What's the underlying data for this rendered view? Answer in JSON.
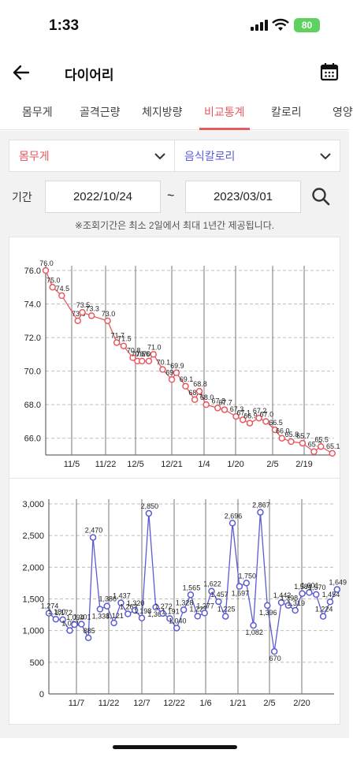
{
  "status_bar": {
    "time": "1:33",
    "battery": "80"
  },
  "header": {
    "title": "다이어리",
    "back_icon": "arrow-left-icon",
    "calendar_icon": "calendar-icon"
  },
  "tabs": [
    {
      "label": "몸무게",
      "active": false
    },
    {
      "label": "골격근량",
      "active": false
    },
    {
      "label": "체지방량",
      "active": false
    },
    {
      "label": "비교통계",
      "active": true
    },
    {
      "label": "칼로리",
      "active": false
    },
    {
      "label": "영양",
      "active": false
    }
  ],
  "selects": {
    "left": "몸무게",
    "right": "음식칼로리"
  },
  "period": {
    "label": "기간",
    "start": "2022/10/24",
    "separator": "~",
    "end": "2023/03/01"
  },
  "notice": "※조회기간은 최소 2일에서 최대 1년간 제공됩니다.",
  "colors": {
    "accent": "#e8585f",
    "weight_line": "#e8585f",
    "calorie_line": "#5b5bd6"
  },
  "chart_data": [
    {
      "type": "line",
      "series": [
        {
          "name": "몸무게",
          "values": [
            76.0,
            75.0,
            74.5,
            73.0,
            73.5,
            73.3,
            73.0,
            71.7,
            71.5,
            70.8,
            70.6,
            70.6,
            70.6,
            71.0,
            70.1,
            69.5,
            69.9,
            69.1,
            68.3,
            68.8,
            68.0,
            67.8,
            67.7,
            67.3,
            67.1,
            66.9,
            67.2,
            67.0,
            66.5,
            66.0,
            65.8,
            65.7,
            65.2,
            65.5,
            65.1
          ]
        }
      ],
      "x": [
        "2022-10-24",
        "2022-10-27",
        "2022-10-31",
        "2022-11-07",
        "2022-11-09",
        "2022-11-13",
        "2022-11-20",
        "2022-11-24",
        "2022-11-27",
        "2022-12-01",
        "2022-12-03",
        "2022-12-05",
        "2022-12-08",
        "2022-12-10",
        "2022-12-14",
        "2022-12-18",
        "2022-12-20",
        "2022-12-24",
        "2022-12-28",
        "2022-12-30",
        "2023-01-02",
        "2023-01-07",
        "2023-01-10",
        "2023-01-15",
        "2023-01-18",
        "2023-01-21",
        "2023-01-25",
        "2023-01-28",
        "2023-02-01",
        "2023-02-04",
        "2023-02-08",
        "2023-02-13",
        "2023-02-18",
        "2023-02-21",
        "2023-02-26"
      ],
      "labels": [
        "76.0",
        "75.0",
        "74.5",
        "73.0",
        "73.5",
        "73.3",
        "73.0",
        "71.7",
        "71.5",
        "70.8",
        "70.6",
        "70.6",
        "70.6",
        "71.0",
        "70.1",
        "69.5",
        "69.9",
        "69.1",
        "68.3",
        "68.8",
        "68.0",
        "67.8",
        "67.7",
        "67.3",
        "67.1",
        "66.9",
        "67.2",
        "67.0",
        "66.5",
        "66.0",
        "65.8",
        "65.7",
        "65.2",
        "65.5",
        "65.1"
      ],
      "xticks": [
        "11/5",
        "11/22",
        "12/5",
        "12/21",
        "1/4",
        "1/20",
        "2/5",
        "2/19"
      ],
      "yticks": [
        "76.0",
        "74.0",
        "72.0",
        "70.0",
        "68.0",
        "66.0"
      ],
      "ylim": [
        65.0,
        76.0
      ]
    },
    {
      "type": "line",
      "series": [
        {
          "name": "음식칼로리",
          "values": [
            1274,
            1180,
            1172,
            1001,
            1094,
            1101,
            885,
            2470,
            1338,
            1386,
            1121,
            1437,
            1263,
            1320,
            1198,
            2850,
            1369,
            1272,
            1191,
            1040,
            1328,
            1565,
            1227,
            1277,
            1622,
            1457,
            1225,
            2696,
            1697,
            1750,
            1082,
            2867,
            1396,
            670,
            1442,
            1398,
            1319,
            1584,
            1601,
            1570,
            1224,
            1454,
            1649
          ]
        }
      ],
      "x": [
        "2022-10-26",
        "2022-10-29",
        "2022-11-01",
        "2022-11-04",
        "2022-11-06",
        "2022-11-09",
        "2022-11-12",
        "2022-11-14",
        "2022-11-17",
        "2022-11-20",
        "2022-11-23",
        "2022-11-26",
        "2022-11-29",
        "2022-12-02",
        "2022-12-05",
        "2022-12-08",
        "2022-12-11",
        "2022-12-14",
        "2022-12-17",
        "2022-12-20",
        "2022-12-23",
        "2022-12-26",
        "2022-12-29",
        "2023-01-01",
        "2023-01-04",
        "2023-01-07",
        "2023-01-10",
        "2023-01-13",
        "2023-01-16",
        "2023-01-19",
        "2023-01-22",
        "2023-01-25",
        "2023-01-28",
        "2023-01-31",
        "2023-02-03",
        "2023-02-06",
        "2023-02-09",
        "2023-02-12",
        "2023-02-15",
        "2023-02-18",
        "2023-02-21",
        "2023-02-24",
        "2023-02-27"
      ],
      "labels": [
        "1,274",
        "1,180",
        "1,172",
        "1,001",
        "1,094",
        "1,101",
        "885",
        "2,470",
        "1,338",
        "1,386",
        "1,121",
        "1,437",
        "1,263",
        "1,320",
        "1,198",
        "2,850",
        "1,369",
        "1,272",
        "1,191",
        "1,040",
        "1,328",
        "1,565",
        "1,227",
        "1,277",
        "1,622",
        "1,457",
        "1,225",
        "2,696",
        "1,697",
        "1,750",
        "1,082",
        "2,867",
        "1,396",
        "670",
        "1,442",
        "1,398",
        "1,319",
        "1,584",
        "1,601",
        "1,570",
        "1,224",
        "1,454",
        "1,649"
      ],
      "xticks": [
        "11/7",
        "11/22",
        "12/7",
        "12/22",
        "1/6",
        "1/21",
        "2/5",
        "2/20"
      ],
      "yticks": [
        "3,000",
        "2,500",
        "2,000",
        "1,500",
        "1,000",
        "500",
        "0"
      ],
      "ylim": [
        0,
        3000
      ]
    }
  ]
}
